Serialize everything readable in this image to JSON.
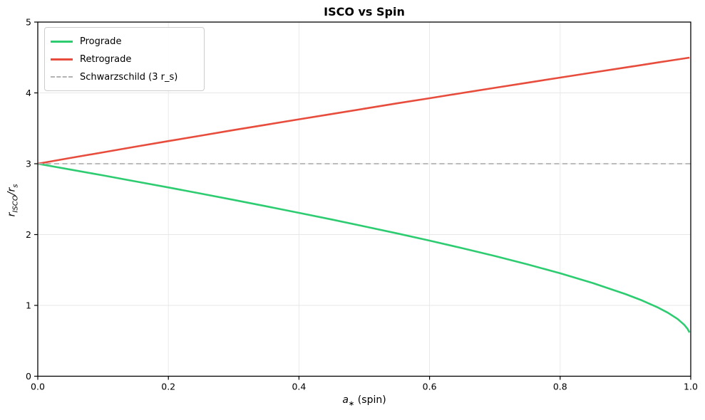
{
  "colors": {
    "prograde": "#2ecc71",
    "retrograde": "#e74c3c",
    "schwarzschild": "#b3b3b3",
    "grid": "#e7e7e7",
    "spine": "#000000",
    "background": "#ffffff"
  },
  "chart_data": {
    "type": "line",
    "title": "ISCO vs Spin",
    "xlabel_parts": {
      "var": "a",
      "sub": "∗",
      "rest": " (spin)"
    },
    "ylabel_parts": {
      "v1": "r",
      "s1": "ISCO",
      "mid": "/r",
      "s2": "s"
    },
    "xlim": [
      0.0,
      1.0
    ],
    "ylim": [
      0,
      5
    ],
    "grid": true,
    "xticks": {
      "values": [
        0.0,
        0.2,
        0.4,
        0.6,
        0.8,
        1.0
      ],
      "labels": [
        "0.0",
        "0.2",
        "0.4",
        "0.6",
        "0.8",
        "1.0"
      ]
    },
    "yticks": {
      "values": [
        0,
        1,
        2,
        3,
        4,
        5
      ],
      "labels": [
        "0",
        "1",
        "2",
        "3",
        "4",
        "5"
      ]
    },
    "x": [
      0,
      0.05,
      0.1,
      0.15,
      0.2,
      0.25,
      0.3,
      0.35,
      0.4,
      0.45,
      0.5,
      0.55,
      0.6,
      0.65,
      0.7,
      0.75,
      0.8,
      0.85,
      0.9,
      0.925,
      0.95,
      0.965,
      0.98,
      0.99,
      0.995,
      0.998
    ],
    "series": [
      {
        "name": "Prograde",
        "color": "#2ecc71",
        "style": "solid",
        "values": [
          3.0,
          2.918,
          2.835,
          2.75,
          2.665,
          2.578,
          2.489,
          2.399,
          2.307,
          2.213,
          2.116,
          2.017,
          1.915,
          1.808,
          1.697,
          1.579,
          1.453,
          1.316,
          1.16,
          1.071,
          0.969,
          0.896,
          0.807,
          0.727,
          0.67,
          0.618
        ]
      },
      {
        "name": "Retrograde",
        "color": "#e74c3c",
        "style": "solid",
        "values": [
          3.0,
          3.081,
          3.161,
          3.241,
          3.32,
          3.397,
          3.475,
          3.551,
          3.627,
          3.702,
          3.777,
          3.852,
          3.925,
          3.999,
          4.071,
          4.144,
          4.216,
          4.287,
          4.359,
          4.394,
          4.43,
          4.451,
          4.472,
          4.486,
          4.493,
          4.497
        ]
      },
      {
        "name": "Schwarzschild (3 r_s)",
        "color": "#b3b3b3",
        "style": "dashed",
        "y_constant": 3
      }
    ],
    "legend": {
      "position": "upper left",
      "entries": [
        {
          "label": "Prograde",
          "color": "#2ecc71",
          "style": "solid"
        },
        {
          "label": "Retrograde",
          "color": "#e74c3c",
          "style": "solid"
        },
        {
          "label": "Schwarzschild (3 r_s)",
          "color": "#b3b3b3",
          "style": "dashed"
        }
      ]
    }
  }
}
